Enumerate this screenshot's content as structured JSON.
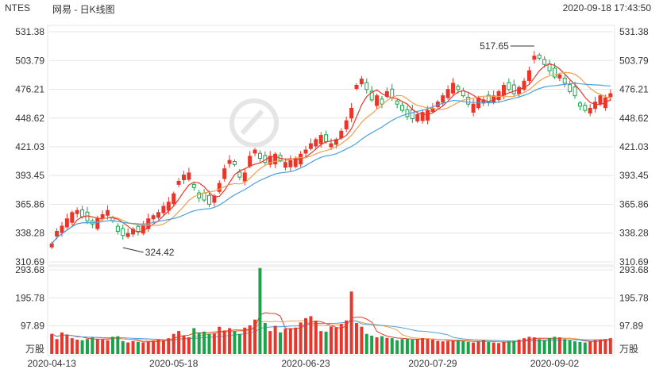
{
  "header": {
    "symbol": "NTES",
    "name": "网易 - 日K线图",
    "timestamp": "2020-09-18 17:43:50"
  },
  "colors": {
    "up": "#e8362a",
    "down": "#1aa34a",
    "ma5": "#e8362a",
    "ma10": "#f0a050",
    "ma20": "#4aa0e0",
    "grid": "#e6e6e6"
  },
  "chart_data": {
    "type": "candlestick",
    "price_ticks": [
      "531.38",
      "503.79",
      "476.21",
      "448.62",
      "421.03",
      "393.45",
      "365.86",
      "338.28",
      "310.69"
    ],
    "price_range": [
      310.69,
      531.38
    ],
    "volume_ticks": [
      "293.68",
      "195.78",
      "97.89"
    ],
    "volume_unit": "万股",
    "volume_range": [
      0,
      293.68
    ],
    "x_labels": [
      {
        "text": "2020-04-13",
        "index": 0
      },
      {
        "text": "2020-05-18",
        "index": 24
      },
      {
        "text": "2020-06-23",
        "index": 50
      },
      {
        "text": "2020-07-29",
        "index": 75
      },
      {
        "text": "2020-09-02",
        "index": 99
      }
    ],
    "annotations": [
      {
        "text": "517.65",
        "index": 95,
        "price": 517.65
      },
      {
        "text": "324.42",
        "index": 14,
        "price": 324.42
      }
    ],
    "closes": [
      328,
      340,
      345,
      352,
      358,
      360,
      354,
      350,
      347,
      352,
      356,
      360,
      350,
      340,
      336,
      338,
      342,
      340,
      346,
      352,
      355,
      358,
      364,
      368,
      376,
      388,
      394,
      396,
      382,
      372,
      370,
      366,
      374,
      386,
      400,
      408,
      404,
      392,
      396,
      412,
      418,
      410,
      406,
      412,
      414,
      408,
      406,
      408,
      410,
      414,
      418,
      424,
      428,
      432,
      426,
      424,
      428,
      436,
      446,
      458,
      480,
      486,
      476,
      466,
      470,
      462,
      474,
      468,
      462,
      456,
      450,
      448,
      452,
      454,
      456,
      458,
      464,
      470,
      476,
      482,
      476,
      470,
      462,
      462,
      468,
      466,
      464,
      470,
      474,
      480,
      476,
      472,
      478,
      484,
      494,
      508,
      506,
      500,
      494,
      488,
      490,
      482,
      474,
      470,
      460,
      456,
      458,
      464,
      470,
      468,
      472
    ],
    "volumes": [
      70,
      52,
      75,
      68,
      55,
      50,
      48,
      52,
      58,
      52,
      50,
      48,
      60,
      62,
      45,
      40,
      45,
      42,
      40,
      44,
      46,
      50,
      48,
      55,
      70,
      80,
      65,
      58,
      90,
      75,
      78,
      70,
      72,
      95,
      82,
      90,
      80,
      70,
      92,
      100,
      120,
      300,
      108,
      80,
      98,
      75,
      88,
      90,
      92,
      110,
      125,
      132,
      116,
      80,
      78,
      96,
      92,
      105,
      117,
      218,
      108,
      95,
      70,
      64,
      58,
      62,
      56,
      55,
      48,
      52,
      54,
      50,
      52,
      55,
      52,
      50,
      46,
      44,
      45,
      46,
      48,
      44,
      42,
      40,
      45,
      48,
      42,
      40,
      38,
      42,
      44,
      46,
      50,
      55,
      60,
      58,
      52,
      48,
      55,
      60,
      58,
      52,
      48,
      44,
      42,
      40,
      45,
      48,
      50,
      52,
      55
    ]
  }
}
